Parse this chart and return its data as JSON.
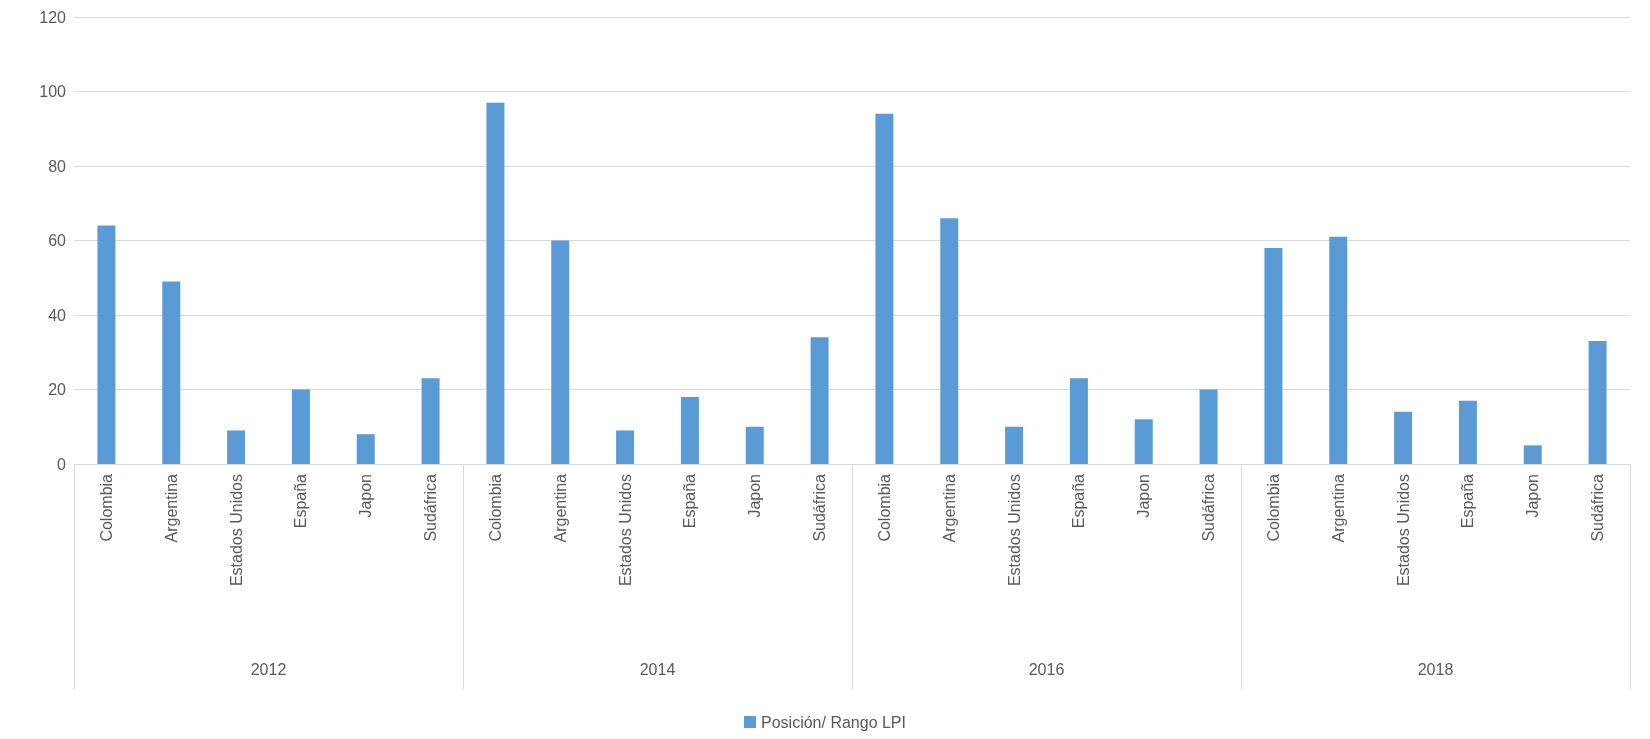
{
  "chart_data": {
    "type": "bar",
    "categories": [
      "Colombia",
      "Argentina",
      "Estados Unidos",
      "España",
      "Japon",
      "Sudáfrica",
      "Colombia",
      "Argentina",
      "Estados Unidos",
      "España",
      "Japon",
      "Sudáfrica",
      "Colombia",
      "Argentina",
      "Estados Unidos",
      "España",
      "Japon",
      "Sudáfrica",
      "Colombia",
      "Argentina",
      "Estados Unidos",
      "España",
      "Japon",
      "Sudáfrica"
    ],
    "series": [
      {
        "name": "Posición/ Rango LPI",
        "color": "#5b9bd5",
        "values": [
          64,
          49,
          9,
          20,
          8,
          23,
          97,
          60,
          9,
          18,
          10,
          34,
          94,
          66,
          10,
          23,
          12,
          20,
          58,
          61,
          14,
          17,
          5,
          33
        ]
      }
    ],
    "annotations": [
      "2012",
      "2014",
      "2016",
      "2018"
    ],
    "ylim": [
      0,
      120
    ],
    "yticks": [
      0,
      20,
      40,
      60,
      80,
      100,
      120
    ],
    "grid": "y",
    "legend": "bottom"
  }
}
